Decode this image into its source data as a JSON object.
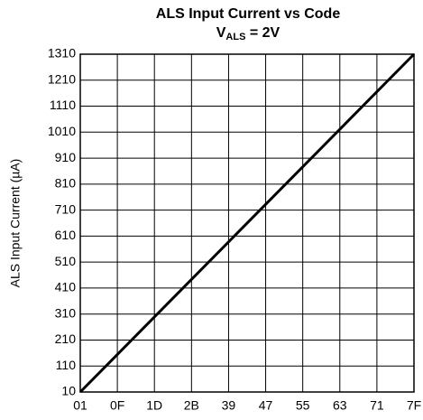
{
  "chart_data": {
    "type": "line",
    "title": "ALS Input Current vs Code",
    "subtitle": {
      "main": "V",
      "subscript": "ALS",
      "rest": " = 2V"
    },
    "ylabel": "ALS Input Current (µA)",
    "x": [
      1,
      127
    ],
    "values": [
      10,
      1310
    ],
    "color": "#000000",
    "xlim": [
      1,
      127
    ],
    "xticks": [
      {
        "value": 1,
        "label": "01"
      },
      {
        "value": 15,
        "label": "0F"
      },
      {
        "value": 29,
        "label": "1D"
      },
      {
        "value": 43,
        "label": "2B"
      },
      {
        "value": 57,
        "label": "39"
      },
      {
        "value": 71,
        "label": "47"
      },
      {
        "value": 85,
        "label": "55"
      },
      {
        "value": 99,
        "label": "63"
      },
      {
        "value": 113,
        "label": "71"
      },
      {
        "value": 127,
        "label": "7F"
      }
    ],
    "ylim": [
      10,
      1310
    ],
    "yticks": [
      10,
      110,
      210,
      310,
      410,
      510,
      610,
      710,
      810,
      910,
      1010,
      1110,
      1210,
      1310
    ],
    "grid": true
  }
}
